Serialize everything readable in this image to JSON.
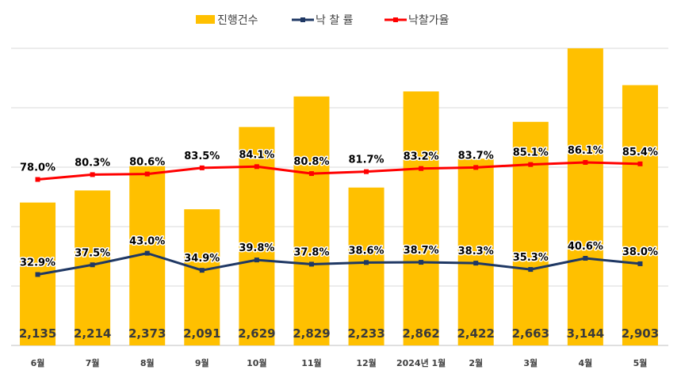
{
  "chart_data": {
    "type": "bar",
    "categories": [
      "6월",
      "7월",
      "8월",
      "9월",
      "10월",
      "11월",
      "12월",
      "2024년 1월",
      "2월",
      "3월",
      "4월",
      "5월"
    ],
    "series": [
      {
        "name": "진행건수",
        "type": "bar",
        "color": "#FFC000",
        "values": [
          2135,
          2214,
          2373,
          2091,
          2629,
          2829,
          2233,
          2862,
          2422,
          2663,
          3144,
          2903
        ],
        "labels": [
          "2,135",
          "2,214",
          "2,373",
          "2,091",
          "2,629",
          "2,829",
          "2,233",
          "2,862",
          "2,422",
          "2,663",
          "3,144",
          "2,903"
        ]
      },
      {
        "name": "낙 찰 률",
        "type": "line",
        "color": "#1F3864",
        "values": [
          32.9,
          37.5,
          43.0,
          34.9,
          39.8,
          37.8,
          38.6,
          38.7,
          38.3,
          35.3,
          40.6,
          38.0
        ],
        "labels": [
          "32.9%",
          "37.5%",
          "43.0%",
          "34.9%",
          "39.8%",
          "37.8%",
          "38.6%",
          "38.7%",
          "38.3%",
          "35.3%",
          "40.6%",
          "38.0%"
        ]
      },
      {
        "name": "낙찰가율",
        "type": "line",
        "color": "#FF0000",
        "values": [
          78.0,
          80.3,
          80.6,
          83.5,
          84.1,
          80.8,
          81.7,
          83.2,
          83.7,
          85.1,
          86.1,
          85.4
        ],
        "labels": [
          "78.0%",
          "80.3%",
          "80.6%",
          "83.5%",
          "84.1%",
          "80.8%",
          "81.7%",
          "83.2%",
          "83.7%",
          "85.1%",
          "86.1%",
          "85.4%"
        ]
      }
    ],
    "legend_position": "top-center",
    "grid": true
  }
}
